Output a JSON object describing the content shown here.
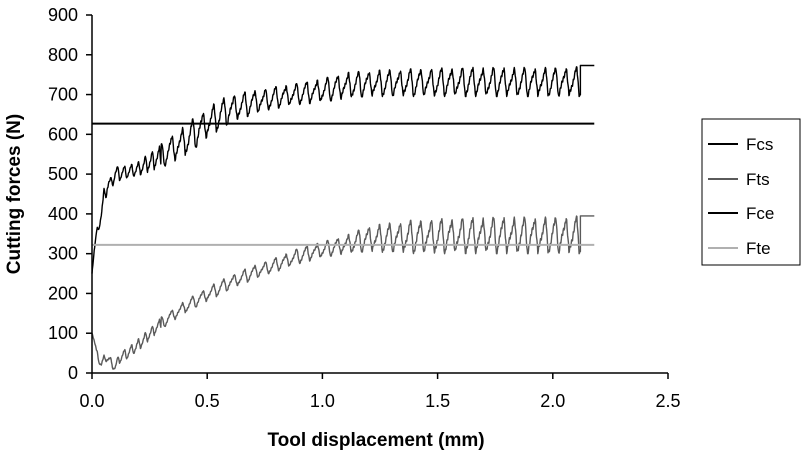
{
  "chart_data": {
    "type": "line",
    "xlabel": "Tool displacement (mm)",
    "ylabel": "Cutting forces (N)",
    "xlim": [
      0,
      2.5
    ],
    "ylim": [
      0,
      900
    ],
    "x_ticks": [
      "0.0",
      "0.5",
      "1.0",
      "1.5",
      "2.0",
      "2.5"
    ],
    "y_ticks": [
      "0",
      "100",
      "200",
      "300",
      "400",
      "500",
      "600",
      "700",
      "800",
      "900"
    ],
    "grid": false,
    "legend_position": "right",
    "series": [
      {
        "name": "Fcs",
        "color": "#000000",
        "style": "oscillating",
        "x": [
          0.0,
          0.01,
          0.02,
          0.04,
          0.06,
          0.08,
          0.1,
          0.15,
          0.2,
          0.25,
          0.3,
          0.35,
          0.4,
          0.45,
          0.5,
          0.55,
          0.6,
          0.65,
          0.7,
          0.8,
          0.9,
          1.0,
          1.1,
          1.2,
          1.4,
          1.6,
          1.8,
          2.0,
          2.12
        ],
        "upper": [
          260,
          320,
          360,
          410,
          500,
          490,
          520,
          520,
          530,
          555,
          575,
          600,
          620,
          645,
          665,
          685,
          700,
          705,
          710,
          720,
          730,
          740,
          755,
          760,
          765,
          768,
          768,
          768,
          770
        ],
        "lower": [
          250,
          300,
          340,
          380,
          440,
          460,
          480,
          490,
          495,
          505,
          515,
          530,
          545,
          565,
          590,
          610,
          625,
          640,
          650,
          665,
          675,
          680,
          690,
          695,
          695,
          695,
          695,
          695,
          695
        ],
        "end_x": 2.18,
        "end_y": 773
      },
      {
        "name": "Fts",
        "color": "#5a5a5a",
        "style": "oscillating",
        "x": [
          0.0,
          0.02,
          0.04,
          0.06,
          0.08,
          0.1,
          0.12,
          0.15,
          0.2,
          0.3,
          0.4,
          0.5,
          0.6,
          0.7,
          0.8,
          0.9,
          1.0,
          1.1,
          1.2,
          1.4,
          1.6,
          1.8,
          2.0,
          2.12
        ],
        "upper": [
          120,
          60,
          30,
          55,
          40,
          20,
          55,
          60,
          85,
          140,
          180,
          215,
          245,
          270,
          290,
          315,
          330,
          345,
          370,
          385,
          390,
          392,
          392,
          395
        ],
        "lower": [
          100,
          40,
          10,
          30,
          15,
          5,
          25,
          35,
          55,
          110,
          150,
          180,
          210,
          235,
          255,
          275,
          290,
          300,
          305,
          300,
          300,
          300,
          300,
          300
        ],
        "end_x": 2.18,
        "end_y": 395
      },
      {
        "name": "Fce",
        "color": "#000000",
        "style": "constant",
        "x": [
          0,
          2.18
        ],
        "values": [
          627,
          627
        ]
      },
      {
        "name": "Fte",
        "color": "#b0b0b0",
        "style": "constant",
        "x": [
          0,
          2.18
        ],
        "values": [
          322,
          322
        ]
      }
    ]
  }
}
